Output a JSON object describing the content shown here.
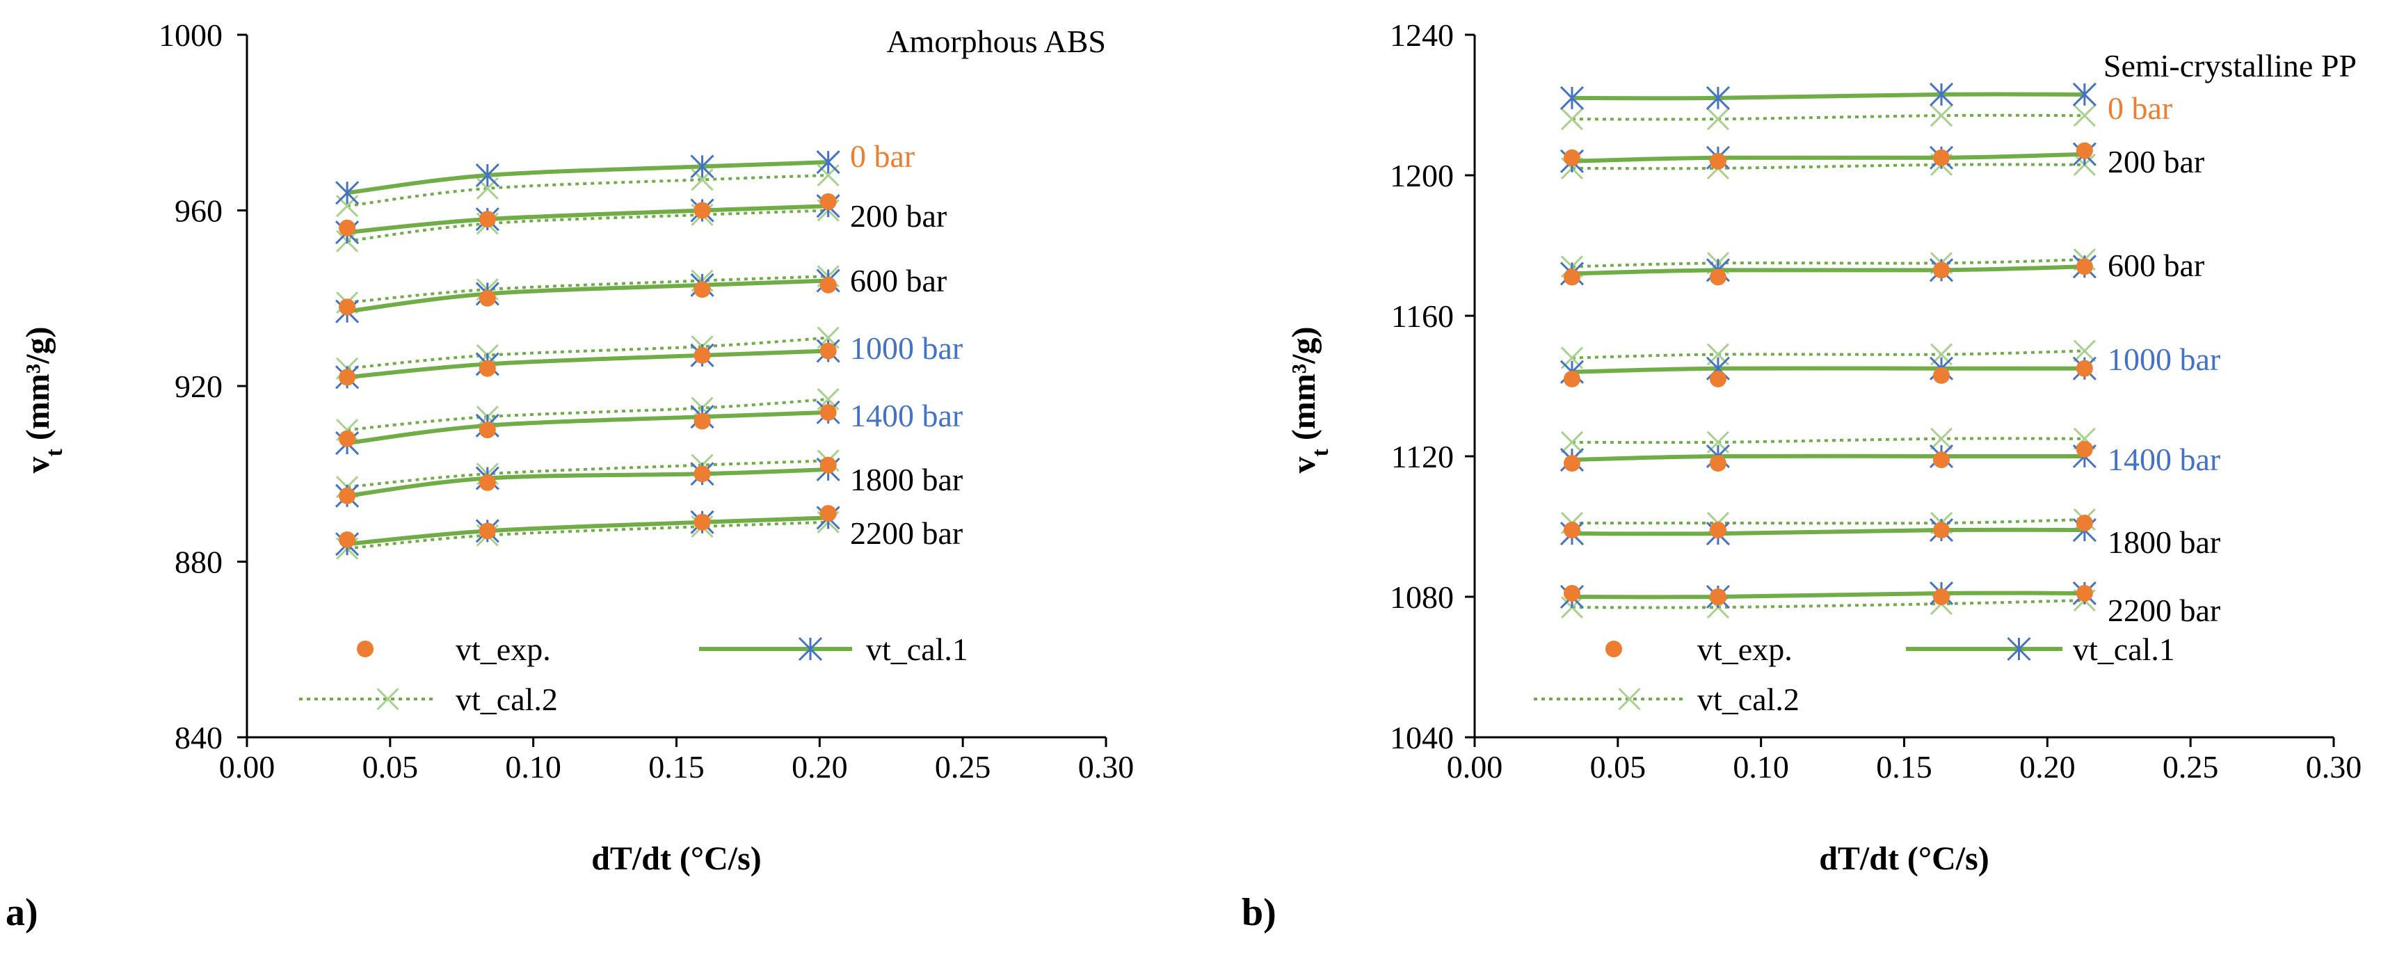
{
  "chart_data": [
    {
      "type": "line",
      "panel_label": "a)",
      "title": "Amorphous ABS",
      "xlabel": "dT/dt (°C/s)",
      "ylabel": "vt (mm³/g)",
      "ylabel_main": "v",
      "ylabel_sub": "t",
      "ylabel_rest": " (mm³/g)",
      "xlim": [
        0.0,
        0.3
      ],
      "ylim": [
        840,
        1000
      ],
      "xticks": [
        "0.00",
        "0.05",
        "0.10",
        "0.15",
        "0.20",
        "0.25",
        "0.30"
      ],
      "yticks": [
        "840",
        "880",
        "920",
        "960",
        "1000"
      ],
      "grid": false,
      "legend_position": "bottom-left",
      "legend": [
        "vt_exp.",
        "vt_cal.1",
        "vt_cal.2"
      ],
      "x": [
        0.035,
        0.084,
        0.159,
        0.203
      ],
      "series": [
        {
          "label": "0 bar",
          "label_color": "#ED7D31",
          "exp": null,
          "cal1": [
            964,
            968,
            970,
            971
          ],
          "cal2": [
            961,
            965,
            967,
            968
          ]
        },
        {
          "label": "200 bar",
          "label_color": "#000000",
          "exp": [
            956,
            958,
            960,
            962
          ],
          "cal1": [
            955,
            958,
            960,
            961
          ],
          "cal2": [
            953,
            957,
            959,
            960
          ]
        },
        {
          "label": "600 bar",
          "label_color": "#000000",
          "exp": [
            938,
            940,
            942,
            943
          ],
          "cal1": [
            937,
            941,
            943,
            944
          ],
          "cal2": [
            939,
            942,
            944,
            945
          ]
        },
        {
          "label": "1000 bar",
          "label_color": "#4472C4",
          "exp": [
            922,
            924,
            927,
            928
          ],
          "cal1": [
            922,
            925,
            927,
            928
          ],
          "cal2": [
            924,
            927,
            929,
            931
          ]
        },
        {
          "label": "1400 bar",
          "label_color": "#4472C4",
          "exp": [
            908,
            910,
            912,
            914
          ],
          "cal1": [
            907,
            911,
            913,
            914
          ],
          "cal2": [
            910,
            913,
            915,
            917
          ]
        },
        {
          "label": "1800 bar",
          "label_color": "#000000",
          "exp": [
            895,
            898,
            900,
            902
          ],
          "cal1": [
            895,
            899,
            900,
            901
          ],
          "cal2": [
            897,
            900,
            902,
            903
          ]
        },
        {
          "label": "2200 bar",
          "label_color": "#000000",
          "exp": [
            885,
            887,
            889,
            891
          ],
          "cal1": [
            884,
            887,
            889,
            890
          ],
          "cal2": [
            883,
            886,
            888,
            889
          ]
        }
      ]
    },
    {
      "type": "line",
      "panel_label": "b)",
      "title": "Semi-crystalline PP",
      "xlabel": "dT/dt (°C/s)",
      "ylabel": "vt (mm³/g)",
      "ylabel_main": "v",
      "ylabel_sub": "t",
      "ylabel_rest": " (mm³/g)",
      "xlim": [
        0.0,
        0.3
      ],
      "ylim": [
        1040,
        1240
      ],
      "xticks": [
        "0.00",
        "0.05",
        "0.10",
        "0.15",
        "0.20",
        "0.25",
        "0.30"
      ],
      "yticks": [
        "1040",
        "1080",
        "1120",
        "1160",
        "1200",
        "1240"
      ],
      "grid": false,
      "legend_position": "bottom-left",
      "legend": [
        "vt_exp.",
        "vt_cal.1",
        "vt_cal.2"
      ],
      "x": [
        0.034,
        0.085,
        0.163,
        0.213
      ],
      "series": [
        {
          "label": "0 bar",
          "label_color": "#ED7D31",
          "exp": null,
          "cal1": [
            1222,
            1222,
            1223,
            1223
          ],
          "cal2": [
            1216,
            1216,
            1217,
            1217
          ]
        },
        {
          "label": "200 bar",
          "label_color": "#000000",
          "exp": [
            1205,
            1204,
            1205,
            1207
          ],
          "cal1": [
            1204,
            1205,
            1205,
            1206
          ],
          "cal2": [
            1202,
            1202,
            1203,
            1203
          ]
        },
        {
          "label": "600 bar",
          "label_color": "#000000",
          "exp": [
            1171,
            1171,
            1173,
            1174
          ],
          "cal1": [
            1172,
            1173,
            1173,
            1174
          ],
          "cal2": [
            1174,
            1175,
            1175,
            1176
          ]
        },
        {
          "label": "1000 bar",
          "label_color": "#4472C4",
          "exp": [
            1142,
            1142,
            1143,
            1145
          ],
          "cal1": [
            1144,
            1145,
            1145,
            1145
          ],
          "cal2": [
            1148,
            1149,
            1149,
            1150
          ]
        },
        {
          "label": "1400 bar",
          "label_color": "#4472C4",
          "exp": [
            1118,
            1118,
            1119,
            1122
          ],
          "cal1": [
            1119,
            1120,
            1120,
            1120
          ],
          "cal2": [
            1124,
            1124,
            1125,
            1125
          ]
        },
        {
          "label": "1800 bar",
          "label_color": "#000000",
          "exp": [
            1099,
            1099,
            1099,
            1101
          ],
          "cal1": [
            1098,
            1098,
            1099,
            1099
          ],
          "cal2": [
            1101,
            1101,
            1101,
            1102
          ]
        },
        {
          "label": "2200 bar",
          "label_color": "#000000",
          "exp": [
            1081,
            1080,
            1080,
            1081
          ],
          "cal1": [
            1080,
            1080,
            1081,
            1081
          ],
          "cal2": [
            1077,
            1077,
            1078,
            1079
          ]
        }
      ]
    }
  ],
  "colors": {
    "exp_marker": "#ED7D31",
    "cal1_line": "#70AD47",
    "cal1_marker": "#4472C4",
    "cal2_line": "#70AD47",
    "cal2_marker": "#A9D18E"
  },
  "icons": {
    "exp": "circle-marker-icon",
    "cal1": "asterisk-marker-icon",
    "cal2": "x-marker-icon"
  }
}
